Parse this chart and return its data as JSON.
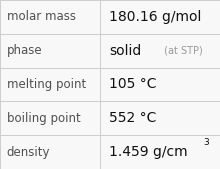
{
  "rows": [
    {
      "label": "molar mass",
      "value": "180.16 g/mol",
      "type": "plain"
    },
    {
      "label": "phase",
      "value": "solid",
      "type": "phase",
      "suffix": " (at STP)"
    },
    {
      "label": "melting point",
      "value": "105 °C",
      "type": "plain"
    },
    {
      "label": "boiling point",
      "value": "552 °C",
      "type": "plain"
    },
    {
      "label": "density",
      "value": "1.459 g/cm",
      "type": "super",
      "superscript": "3"
    }
  ],
  "col_split": 0.455,
  "bg_color": "#f8f8f8",
  "border_color": "#cccccc",
  "label_color": "#505050",
  "value_color": "#111111",
  "suffix_color": "#999999",
  "label_fontsize": 8.5,
  "value_fontsize": 10.0,
  "suffix_fontsize": 7.0,
  "super_fontsize": 6.5
}
